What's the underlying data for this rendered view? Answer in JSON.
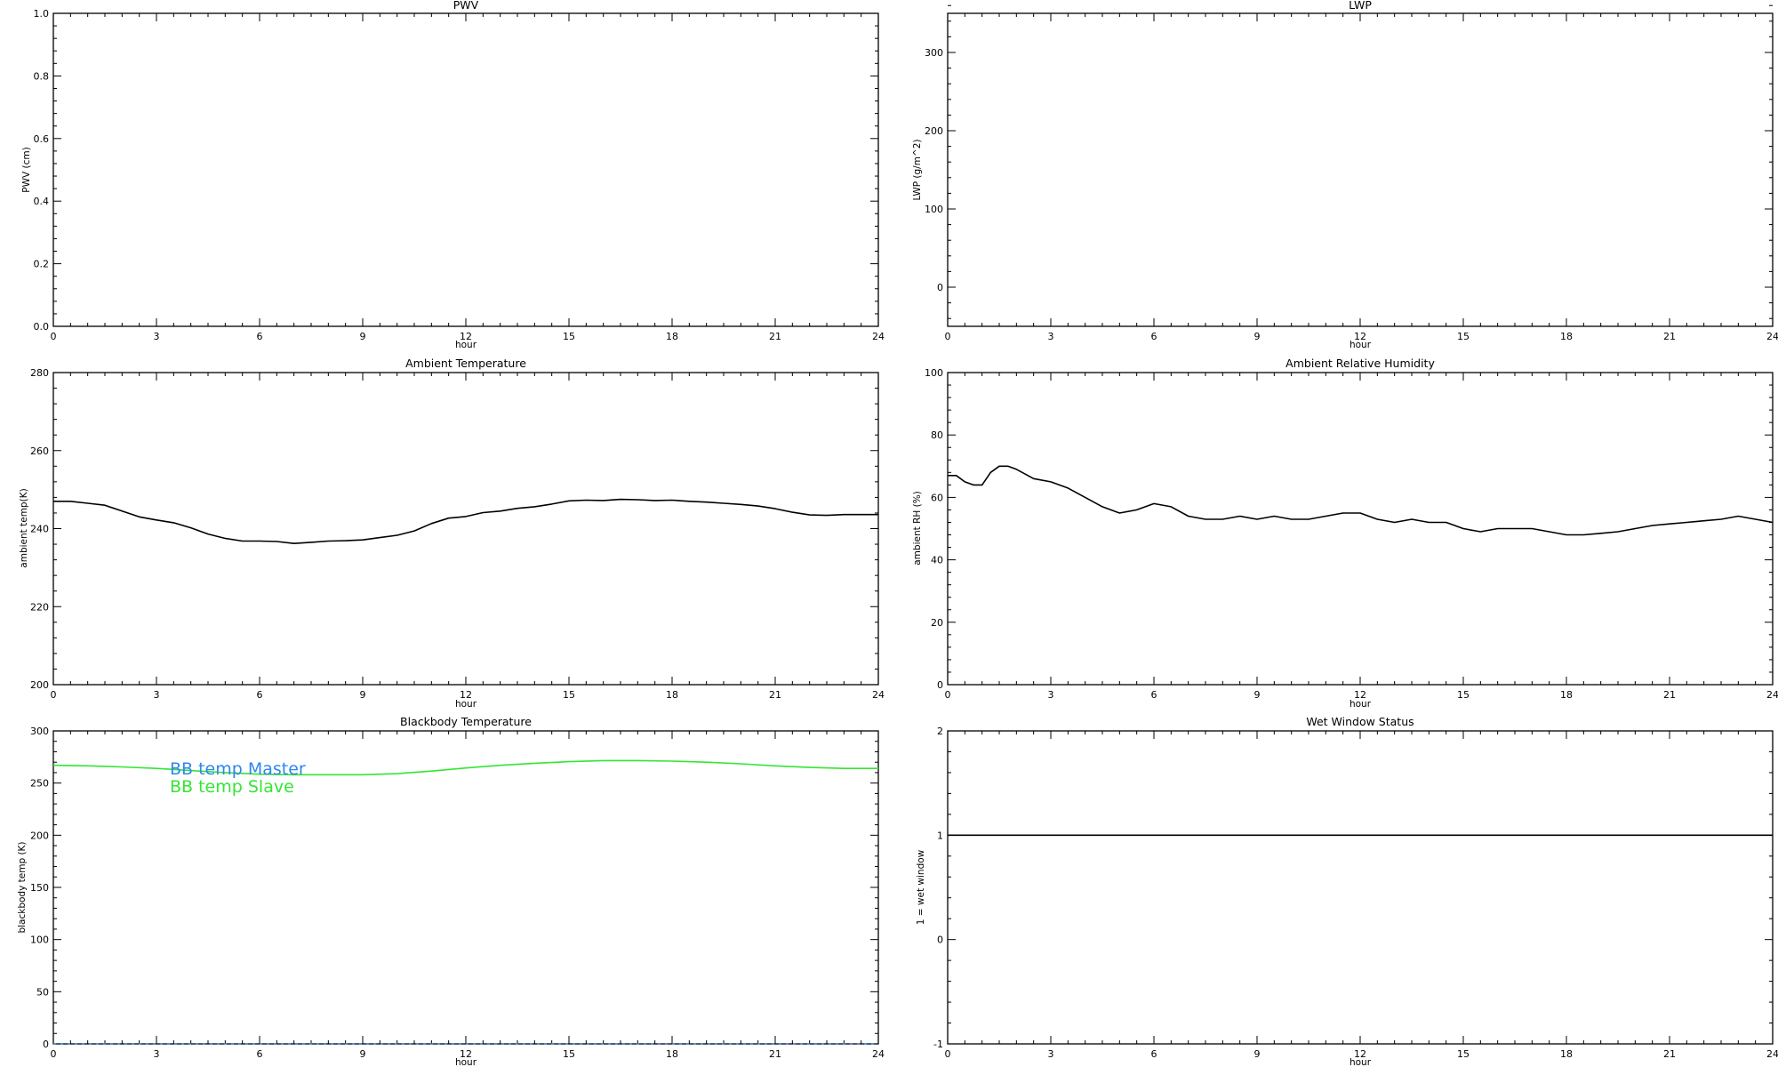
{
  "chart_data": [
    {
      "type": "line",
      "title": "PWV",
      "xlabel": "hour",
      "ylabel": "PWV (cm)",
      "xlim": [
        0,
        24
      ],
      "ylim": [
        0,
        1.0
      ],
      "x_ticks": [
        0,
        3,
        6,
        9,
        12,
        15,
        18,
        21,
        24
      ],
      "y_ticks": [
        "0.0",
        "0.2",
        "0.4",
        "0.6",
        "0.8",
        "1.0"
      ],
      "grid": false,
      "series": []
    },
    {
      "type": "line",
      "title": "LWP",
      "xlabel": "hour",
      "ylabel": "LWP (g/m^2)",
      "xlim": [
        0,
        24
      ],
      "ylim": [
        -50,
        350
      ],
      "x_ticks": [
        0,
        3,
        6,
        9,
        12,
        15,
        18,
        21,
        24
      ],
      "y_ticks": [
        "0",
        "100",
        "200",
        "300"
      ],
      "grid": false,
      "series": []
    },
    {
      "type": "line",
      "title": "Ambient Temperature",
      "xlabel": "hour",
      "ylabel": "ambient temp(K)",
      "xlim": [
        0,
        24
      ],
      "ylim": [
        200,
        280
      ],
      "x_ticks": [
        0,
        3,
        6,
        9,
        12,
        15,
        18,
        21,
        24
      ],
      "y_ticks": [
        "200",
        "220",
        "240",
        "260",
        "280"
      ],
      "grid": false,
      "series": [
        {
          "color": "#000000",
          "x": [
            0,
            0.5,
            1,
            1.5,
            2,
            2.5,
            3,
            3.5,
            4,
            4.5,
            5,
            5.5,
            6,
            6.5,
            7,
            7.5,
            8,
            8.5,
            9,
            9.5,
            10,
            10.5,
            11,
            11.5,
            12,
            12.5,
            13,
            13.5,
            14,
            14.5,
            15,
            15.5,
            16,
            16.5,
            17,
            17.5,
            18,
            18.5,
            19,
            19.5,
            20,
            20.5,
            21,
            21.5,
            22,
            22.5,
            23,
            23.5,
            24
          ],
          "y": [
            247,
            247,
            246.5,
            246,
            244.5,
            243,
            242.2,
            241.5,
            240.2,
            238.6,
            237.5,
            236.8,
            236.8,
            236.7,
            236.2,
            236.5,
            236.8,
            236.9,
            237.1,
            237.7,
            238.3,
            239.4,
            241.3,
            242.7,
            243.1,
            244.1,
            244.5,
            245.2,
            245.6,
            246.3,
            247.1,
            247.3,
            247.2,
            247.5,
            247.4,
            247.2,
            247.3,
            247.0,
            246.8,
            246.5,
            246.2,
            245.8,
            245.1,
            244.2,
            243.5,
            243.4,
            243.6,
            243.6,
            243.6
          ]
        }
      ]
    },
    {
      "type": "line",
      "title": "Ambient Relative Humidity",
      "xlabel": "hour",
      "ylabel": "ambient RH (%)",
      "xlim": [
        0,
        24
      ],
      "ylim": [
        0,
        100
      ],
      "x_ticks": [
        0,
        3,
        6,
        9,
        12,
        15,
        18,
        21,
        24
      ],
      "y_ticks": [
        "0",
        "20",
        "40",
        "60",
        "80",
        "100"
      ],
      "grid": false,
      "series": [
        {
          "color": "#000000",
          "x": [
            0,
            0.25,
            0.5,
            0.75,
            1,
            1.25,
            1.5,
            1.75,
            2,
            2.5,
            3,
            3.5,
            4,
            4.5,
            5,
            5.5,
            6,
            6.5,
            7,
            7.5,
            8,
            8.5,
            9,
            9.5,
            10,
            10.5,
            11,
            11.5,
            12,
            12.5,
            13,
            13.5,
            14,
            14.5,
            15,
            15.5,
            16,
            16.5,
            17,
            17.5,
            18,
            18.5,
            19,
            19.5,
            20,
            20.5,
            21,
            21.5,
            22,
            22.5,
            23,
            23.5,
            24
          ],
          "y": [
            67,
            67,
            65,
            64,
            64,
            68,
            70,
            70,
            69,
            66,
            65,
            63,
            60,
            57,
            55,
            56,
            58,
            57,
            54,
            53,
            53,
            54,
            53,
            54,
            53,
            53,
            54,
            55,
            55,
            53,
            52,
            53,
            52,
            52,
            50,
            49,
            50,
            50,
            50,
            49,
            48,
            48,
            48.5,
            49,
            50,
            51,
            51.5,
            52,
            52.5,
            53,
            54,
            53,
            52
          ]
        }
      ]
    },
    {
      "type": "line",
      "title": "Blackbody Temperature",
      "xlabel": "hour",
      "ylabel": "blackbody temp (K)",
      "xlim": [
        0,
        24
      ],
      "ylim": [
        0,
        300
      ],
      "x_ticks": [
        0,
        3,
        6,
        9,
        12,
        15,
        18,
        21,
        24
      ],
      "y_ticks": [
        "0",
        "50",
        "100",
        "150",
        "200",
        "250",
        "300"
      ],
      "grid": false,
      "series": [
        {
          "name": "BB temp Master",
          "color": "#2f86f0",
          "style": "dashed",
          "x": [
            0,
            3,
            6,
            9,
            12,
            15,
            18,
            21,
            24
          ],
          "y": [
            0,
            0,
            0,
            0,
            0,
            0,
            0,
            0,
            0
          ]
        },
        {
          "name": "BB temp Slave",
          "color": "#33e633",
          "style": "solid",
          "x": [
            0,
            1,
            2,
            3,
            4,
            5,
            6,
            7,
            8,
            9,
            10,
            11,
            12,
            13,
            14,
            15,
            16,
            17,
            18,
            19,
            20,
            21,
            22,
            23,
            24
          ],
          "y": [
            267,
            266.5,
            265.5,
            264,
            262,
            260,
            258.5,
            258,
            258,
            258,
            259,
            261.5,
            264.5,
            267,
            269,
            270.5,
            271.5,
            271.5,
            271,
            270,
            268.5,
            266.5,
            265,
            264,
            264
          ]
        }
      ],
      "legend": {
        "placement": "top-left",
        "entries": [
          "BB temp Master",
          "BB temp Slave"
        ]
      }
    },
    {
      "type": "line",
      "title": "Wet Window Status",
      "xlabel": "hour",
      "ylabel": "1 = wet window",
      "xlim": [
        0,
        24
      ],
      "ylim": [
        -1,
        2
      ],
      "x_ticks": [
        0,
        3,
        6,
        9,
        12,
        15,
        18,
        21,
        24
      ],
      "y_ticks": [
        "-1",
        "0",
        "1",
        "2"
      ],
      "grid": false,
      "series": [
        {
          "color": "#000000",
          "x": [
            0,
            24
          ],
          "y": [
            1,
            1
          ]
        }
      ]
    }
  ]
}
